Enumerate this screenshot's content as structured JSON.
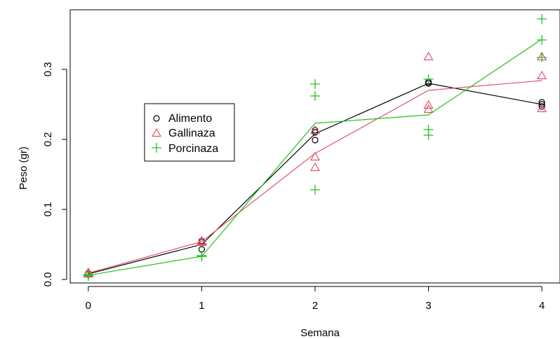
{
  "chart_data": {
    "type": "scatter",
    "title": "",
    "xlabel": "Semana",
    "ylabel": "Peso (gr)",
    "xlim": [
      -0.16,
      4.16
    ],
    "ylim": [
      -0.005,
      0.385
    ],
    "x_ticks": [
      0,
      1,
      2,
      3,
      4
    ],
    "y_ticks": [
      0.0,
      0.1,
      0.2,
      0.3
    ],
    "x_tick_labels": [
      "0",
      "1",
      "2",
      "3",
      "4"
    ],
    "y_tick_labels": [
      "0.0",
      "0.1",
      "0.2",
      "0.3"
    ],
    "grid": false,
    "legend_position": "left",
    "series": [
      {
        "name": "Alimento",
        "color": "#000000",
        "marker": "circle",
        "points": [
          [
            0,
            0.008
          ],
          [
            0,
            0.009
          ],
          [
            0,
            0.007
          ],
          [
            1,
            0.043
          ],
          [
            1,
            0.055
          ],
          [
            1,
            0.053
          ],
          [
            2,
            0.199
          ],
          [
            2,
            0.21
          ],
          [
            2,
            0.213
          ],
          [
            3,
            0.28
          ],
          [
            3,
            0.282
          ],
          [
            3,
            0.28
          ],
          [
            4,
            0.247
          ],
          [
            4,
            0.253
          ],
          [
            4,
            0.25
          ]
        ],
        "line": [
          [
            0,
            0.008
          ],
          [
            1,
            0.05
          ],
          [
            2,
            0.208
          ],
          [
            3,
            0.28
          ],
          [
            4,
            0.25
          ]
        ]
      },
      {
        "name": "Gallinaza",
        "color": "#DF536B",
        "marker": "triangle",
        "points": [
          [
            0,
            0.01
          ],
          [
            0,
            0.009
          ],
          [
            0,
            0.008
          ],
          [
            1,
            0.055
          ],
          [
            1,
            0.054
          ],
          [
            1,
            0.053
          ],
          [
            2,
            0.16
          ],
          [
            2,
            0.175
          ],
          [
            2,
            0.213
          ],
          [
            3,
            0.318
          ],
          [
            3,
            0.249
          ],
          [
            3,
            0.243
          ],
          [
            4,
            0.318
          ],
          [
            4,
            0.291
          ],
          [
            4,
            0.244
          ]
        ],
        "line": [
          [
            0,
            0.009
          ],
          [
            1,
            0.054
          ],
          [
            2,
            0.18
          ],
          [
            3,
            0.27
          ],
          [
            4,
            0.284
          ]
        ]
      },
      {
        "name": "Porcinaza",
        "color": "#22C11F",
        "marker": "plus",
        "points": [
          [
            0,
            0.006
          ],
          [
            0,
            0.007
          ],
          [
            0,
            0.005
          ],
          [
            1,
            0.033
          ],
          [
            1,
            0.034
          ],
          [
            1,
            0.033
          ],
          [
            2,
            0.128
          ],
          [
            2,
            0.262
          ],
          [
            2,
            0.279
          ],
          [
            3,
            0.206
          ],
          [
            3,
            0.214
          ],
          [
            3,
            0.286
          ],
          [
            4,
            0.372
          ],
          [
            4,
            0.317
          ],
          [
            4,
            0.342
          ]
        ],
        "line": [
          [
            0,
            0.006
          ],
          [
            1,
            0.033
          ],
          [
            2,
            0.223
          ],
          [
            3,
            0.235
          ],
          [
            4,
            0.343
          ]
        ]
      }
    ]
  }
}
